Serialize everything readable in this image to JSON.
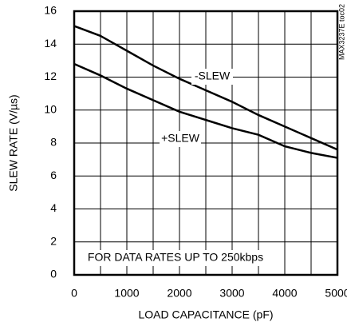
{
  "chart_data": {
    "type": "line",
    "x_label": "LOAD CAPACITANCE (pF)",
    "y_label": "SLEW RATE (V/µs)",
    "x": [
      0,
      500,
      1000,
      1500,
      2000,
      2500,
      3000,
      3500,
      4000,
      4500,
      5000
    ],
    "series": [
      {
        "name": "-SLEW",
        "color": "#000000",
        "values": [
          15.1,
          14.5,
          13.6,
          12.7,
          11.9,
          11.2,
          10.5,
          9.7,
          9.0,
          8.3,
          7.6
        ]
      },
      {
        "name": "+SLEW",
        "color": "#000000",
        "values": [
          12.8,
          12.1,
          11.3,
          10.6,
          9.9,
          9.4,
          8.9,
          8.5,
          7.8,
          7.4,
          7.1
        ]
      }
    ],
    "xlim": [
      0,
      5000
    ],
    "xticks": [
      0,
      1000,
      2000,
      3000,
      4000,
      5000
    ],
    "x_gridlines": [
      500,
      1000,
      1500,
      2000,
      2500,
      3000,
      3500,
      4000,
      4500
    ],
    "ylim": [
      0,
      16
    ],
    "yticks": [
      0,
      2,
      4,
      6,
      8,
      10,
      12,
      14,
      16
    ],
    "grid": true,
    "note": "FOR DATA RATES UP TO 250kbps",
    "figure_id": "MAX3237E toc02"
  }
}
